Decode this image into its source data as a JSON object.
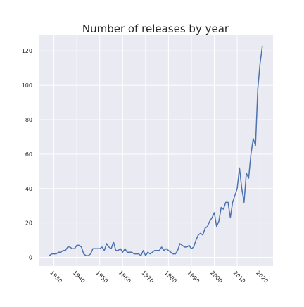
{
  "chart_data": {
    "type": "line",
    "title": "Number of releases by year",
    "x": [
      1928,
      1929,
      1930,
      1931,
      1932,
      1933,
      1934,
      1935,
      1936,
      1937,
      1938,
      1939,
      1940,
      1941,
      1942,
      1943,
      1944,
      1945,
      1946,
      1947,
      1948,
      1949,
      1950,
      1951,
      1952,
      1953,
      1954,
      1955,
      1956,
      1957,
      1958,
      1959,
      1960,
      1961,
      1962,
      1963,
      1964,
      1965,
      1966,
      1967,
      1968,
      1969,
      1970,
      1971,
      1972,
      1973,
      1974,
      1975,
      1976,
      1977,
      1978,
      1979,
      1980,
      1981,
      1982,
      1983,
      1984,
      1985,
      1986,
      1987,
      1988,
      1989,
      1990,
      1991,
      1992,
      1993,
      1994,
      1995,
      1996,
      1997,
      1998,
      1999,
      2000,
      2001,
      2002,
      2003,
      2004,
      2005,
      2006,
      2007,
      2008,
      2009,
      2010,
      2011,
      2012,
      2013,
      2014,
      2015,
      2016,
      2017,
      2018,
      2019,
      2020,
      2021
    ],
    "series": [
      {
        "name": "releases",
        "color": "#4c72b0",
        "values": [
          1,
          2,
          2,
          2,
          3,
          3,
          4,
          4,
          6,
          6,
          5,
          5,
          7,
          7,
          6,
          2,
          1,
          1,
          2,
          5,
          5,
          5,
          5,
          6,
          4,
          8,
          6,
          5,
          9,
          4,
          4,
          5,
          3,
          5,
          3,
          3,
          3,
          2,
          2,
          2,
          1,
          4,
          1,
          3,
          2,
          3,
          4,
          4,
          4,
          6,
          4,
          5,
          4,
          3,
          2,
          2,
          4,
          8,
          7,
          6,
          6,
          7,
          5,
          6,
          10,
          13,
          14,
          13,
          17,
          18,
          21,
          23,
          26,
          18,
          21,
          29,
          28,
          32,
          32,
          23,
          32,
          36,
          40,
          52,
          40,
          32,
          49,
          46,
          60,
          69,
          65,
          98,
          113,
          123
        ]
      }
    ],
    "xlim": [
      1923.35,
      2025.65
    ],
    "xticks": [
      1930,
      1940,
      1950,
      1960,
      1970,
      1980,
      1990,
      2000,
      2010,
      2020
    ],
    "ylim": [
      -5.1,
      129.1
    ],
    "yticks": [
      0,
      20,
      40,
      60,
      80,
      100,
      120
    ],
    "grid": true
  }
}
